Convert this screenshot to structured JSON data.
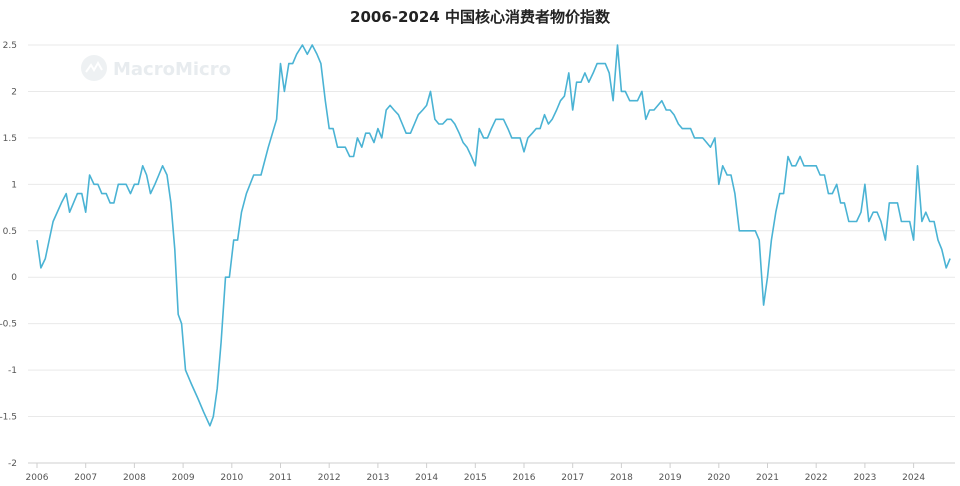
{
  "chart_data": {
    "type": "line",
    "title": "2006-2024 中国核心消费者物价指数",
    "watermark": "MacroMicro",
    "xlabel": "",
    "ylabel": "",
    "xlim": [
      2006.0,
      2024.95
    ],
    "ylim": [
      -2,
      2.5
    ],
    "x_ticks": [
      "2006",
      "2007",
      "2008",
      "2009",
      "2010",
      "2011",
      "2012",
      "2013",
      "2014",
      "2015",
      "2016",
      "2017",
      "2018",
      "2019",
      "2020",
      "2021",
      "2022",
      "2023",
      "2024"
    ],
    "y_ticks": [
      "-2",
      "-1.5",
      "-1",
      "-0.5",
      "0",
      "0.5",
      "1",
      "1.5",
      "2",
      "2.5"
    ],
    "grid": true,
    "legend": "none",
    "series": [
      {
        "color": "#4ab3d4",
        "points": [
          [
            2006.0,
            0.4
          ],
          [
            2006.08,
            0.1
          ],
          [
            2006.17,
            0.2
          ],
          [
            2006.33,
            0.6
          ],
          [
            2006.5,
            0.8
          ],
          [
            2006.6,
            0.9
          ],
          [
            2006.67,
            0.7
          ],
          [
            2006.75,
            0.8
          ],
          [
            2006.83,
            0.9
          ],
          [
            2006.92,
            0.9
          ],
          [
            2007.0,
            0.7
          ],
          [
            2007.08,
            1.1
          ],
          [
            2007.17,
            1.0
          ],
          [
            2007.25,
            1.0
          ],
          [
            2007.33,
            0.9
          ],
          [
            2007.42,
            0.9
          ],
          [
            2007.5,
            0.8
          ],
          [
            2007.58,
            0.8
          ],
          [
            2007.67,
            1.0
          ],
          [
            2007.75,
            1.0
          ],
          [
            2007.83,
            1.0
          ],
          [
            2007.92,
            0.9
          ],
          [
            2008.0,
            1.0
          ],
          [
            2008.08,
            1.0
          ],
          [
            2008.17,
            1.2
          ],
          [
            2008.25,
            1.1
          ],
          [
            2008.33,
            0.9
          ],
          [
            2008.42,
            1.0
          ],
          [
            2008.5,
            1.1
          ],
          [
            2008.58,
            1.2
          ],
          [
            2008.67,
            1.1
          ],
          [
            2008.75,
            0.8
          ],
          [
            2008.83,
            0.3
          ],
          [
            2008.9,
            -0.4
          ],
          [
            2008.97,
            -0.5
          ],
          [
            2009.05,
            -1.0
          ],
          [
            2009.17,
            -1.15
          ],
          [
            2009.3,
            -1.3
          ],
          [
            2009.42,
            -1.45
          ],
          [
            2009.55,
            -1.6
          ],
          [
            2009.62,
            -1.5
          ],
          [
            2009.7,
            -1.2
          ],
          [
            2009.78,
            -0.7
          ],
          [
            2009.87,
            0.0
          ],
          [
            2009.95,
            0.0
          ],
          [
            2010.04,
            0.4
          ],
          [
            2010.12,
            0.4
          ],
          [
            2010.2,
            0.7
          ],
          [
            2010.3,
            0.9
          ],
          [
            2010.45,
            1.1
          ],
          [
            2010.6,
            1.1
          ],
          [
            2010.75,
            1.4
          ],
          [
            2010.92,
            1.7
          ],
          [
            2011.0,
            2.3
          ],
          [
            2011.08,
            2.0
          ],
          [
            2011.17,
            2.3
          ],
          [
            2011.25,
            2.3
          ],
          [
            2011.33,
            2.4
          ],
          [
            2011.45,
            2.5
          ],
          [
            2011.55,
            2.4
          ],
          [
            2011.65,
            2.5
          ],
          [
            2011.75,
            2.4
          ],
          [
            2011.83,
            2.3
          ],
          [
            2011.92,
            1.9
          ],
          [
            2012.0,
            1.6
          ],
          [
            2012.08,
            1.6
          ],
          [
            2012.17,
            1.4
          ],
          [
            2012.33,
            1.4
          ],
          [
            2012.42,
            1.3
          ],
          [
            2012.5,
            1.3
          ],
          [
            2012.58,
            1.5
          ],
          [
            2012.67,
            1.4
          ],
          [
            2012.75,
            1.55
          ],
          [
            2012.83,
            1.55
          ],
          [
            2012.92,
            1.45
          ],
          [
            2013.0,
            1.6
          ],
          [
            2013.08,
            1.5
          ],
          [
            2013.17,
            1.8
          ],
          [
            2013.25,
            1.85
          ],
          [
            2013.33,
            1.8
          ],
          [
            2013.42,
            1.75
          ],
          [
            2013.5,
            1.65
          ],
          [
            2013.58,
            1.55
          ],
          [
            2013.67,
            1.55
          ],
          [
            2013.75,
            1.65
          ],
          [
            2013.83,
            1.75
          ],
          [
            2013.92,
            1.8
          ],
          [
            2014.0,
            1.85
          ],
          [
            2014.08,
            2.0
          ],
          [
            2014.17,
            1.7
          ],
          [
            2014.25,
            1.65
          ],
          [
            2014.33,
            1.65
          ],
          [
            2014.42,
            1.7
          ],
          [
            2014.5,
            1.7
          ],
          [
            2014.58,
            1.65
          ],
          [
            2014.67,
            1.55
          ],
          [
            2014.75,
            1.45
          ],
          [
            2014.83,
            1.4
          ],
          [
            2014.92,
            1.3
          ],
          [
            2015.0,
            1.2
          ],
          [
            2015.08,
            1.6
          ],
          [
            2015.17,
            1.5
          ],
          [
            2015.25,
            1.5
          ],
          [
            2015.33,
            1.6
          ],
          [
            2015.42,
            1.7
          ],
          [
            2015.5,
            1.7
          ],
          [
            2015.58,
            1.7
          ],
          [
            2015.67,
            1.6
          ],
          [
            2015.75,
            1.5
          ],
          [
            2015.83,
            1.5
          ],
          [
            2015.92,
            1.5
          ],
          [
            2016.0,
            1.35
          ],
          [
            2016.08,
            1.5
          ],
          [
            2016.17,
            1.55
          ],
          [
            2016.25,
            1.6
          ],
          [
            2016.33,
            1.6
          ],
          [
            2016.42,
            1.75
          ],
          [
            2016.5,
            1.65
          ],
          [
            2016.58,
            1.7
          ],
          [
            2016.67,
            1.8
          ],
          [
            2016.75,
            1.9
          ],
          [
            2016.83,
            1.95
          ],
          [
            2016.92,
            2.2
          ],
          [
            2017.0,
            1.8
          ],
          [
            2017.08,
            2.1
          ],
          [
            2017.17,
            2.1
          ],
          [
            2017.25,
            2.2
          ],
          [
            2017.33,
            2.1
          ],
          [
            2017.42,
            2.2
          ],
          [
            2017.5,
            2.3
          ],
          [
            2017.58,
            2.3
          ],
          [
            2017.67,
            2.3
          ],
          [
            2017.75,
            2.2
          ],
          [
            2017.83,
            1.9
          ],
          [
            2017.92,
            2.5
          ],
          [
            2018.0,
            2.0
          ],
          [
            2018.08,
            2.0
          ],
          [
            2018.17,
            1.9
          ],
          [
            2018.25,
            1.9
          ],
          [
            2018.33,
            1.9
          ],
          [
            2018.42,
            2.0
          ],
          [
            2018.5,
            1.7
          ],
          [
            2018.58,
            1.8
          ],
          [
            2018.67,
            1.8
          ],
          [
            2018.75,
            1.85
          ],
          [
            2018.83,
            1.9
          ],
          [
            2018.92,
            1.8
          ],
          [
            2019.0,
            1.8
          ],
          [
            2019.08,
            1.75
          ],
          [
            2019.17,
            1.65
          ],
          [
            2019.25,
            1.6
          ],
          [
            2019.33,
            1.6
          ],
          [
            2019.42,
            1.6
          ],
          [
            2019.5,
            1.5
          ],
          [
            2019.58,
            1.5
          ],
          [
            2019.67,
            1.5
          ],
          [
            2019.75,
            1.45
          ],
          [
            2019.83,
            1.4
          ],
          [
            2019.92,
            1.5
          ],
          [
            2020.0,
            1.0
          ],
          [
            2020.08,
            1.2
          ],
          [
            2020.17,
            1.1
          ],
          [
            2020.25,
            1.1
          ],
          [
            2020.33,
            0.9
          ],
          [
            2020.42,
            0.5
          ],
          [
            2020.5,
            0.5
          ],
          [
            2020.58,
            0.5
          ],
          [
            2020.67,
            0.5
          ],
          [
            2020.75,
            0.5
          ],
          [
            2020.83,
            0.4
          ],
          [
            2020.92,
            -0.3
          ],
          [
            2021.0,
            -0.0
          ],
          [
            2021.08,
            0.4
          ],
          [
            2021.17,
            0.7
          ],
          [
            2021.25,
            0.9
          ],
          [
            2021.33,
            0.9
          ],
          [
            2021.42,
            1.3
          ],
          [
            2021.5,
            1.2
          ],
          [
            2021.58,
            1.2
          ],
          [
            2021.67,
            1.3
          ],
          [
            2021.75,
            1.2
          ],
          [
            2021.83,
            1.2
          ],
          [
            2021.92,
            1.2
          ],
          [
            2022.0,
            1.2
          ],
          [
            2022.08,
            1.1
          ],
          [
            2022.17,
            1.1
          ],
          [
            2022.25,
            0.9
          ],
          [
            2022.33,
            0.9
          ],
          [
            2022.42,
            1.0
          ],
          [
            2022.5,
            0.8
          ],
          [
            2022.58,
            0.8
          ],
          [
            2022.67,
            0.6
          ],
          [
            2022.75,
            0.6
          ],
          [
            2022.83,
            0.6
          ],
          [
            2022.92,
            0.7
          ],
          [
            2023.0,
            1.0
          ],
          [
            2023.08,
            0.6
          ],
          [
            2023.17,
            0.7
          ],
          [
            2023.25,
            0.7
          ],
          [
            2023.33,
            0.6
          ],
          [
            2023.42,
            0.4
          ],
          [
            2023.5,
            0.8
          ],
          [
            2023.58,
            0.8
          ],
          [
            2023.67,
            0.8
          ],
          [
            2023.75,
            0.6
          ],
          [
            2023.83,
            0.6
          ],
          [
            2023.92,
            0.6
          ],
          [
            2024.0,
            0.4
          ],
          [
            2024.08,
            1.2
          ],
          [
            2024.17,
            0.6
          ],
          [
            2024.25,
            0.7
          ],
          [
            2024.33,
            0.6
          ],
          [
            2024.42,
            0.6
          ],
          [
            2024.5,
            0.4
          ],
          [
            2024.58,
            0.3
          ],
          [
            2024.67,
            0.1
          ],
          [
            2024.75,
            0.2
          ]
        ]
      }
    ]
  }
}
